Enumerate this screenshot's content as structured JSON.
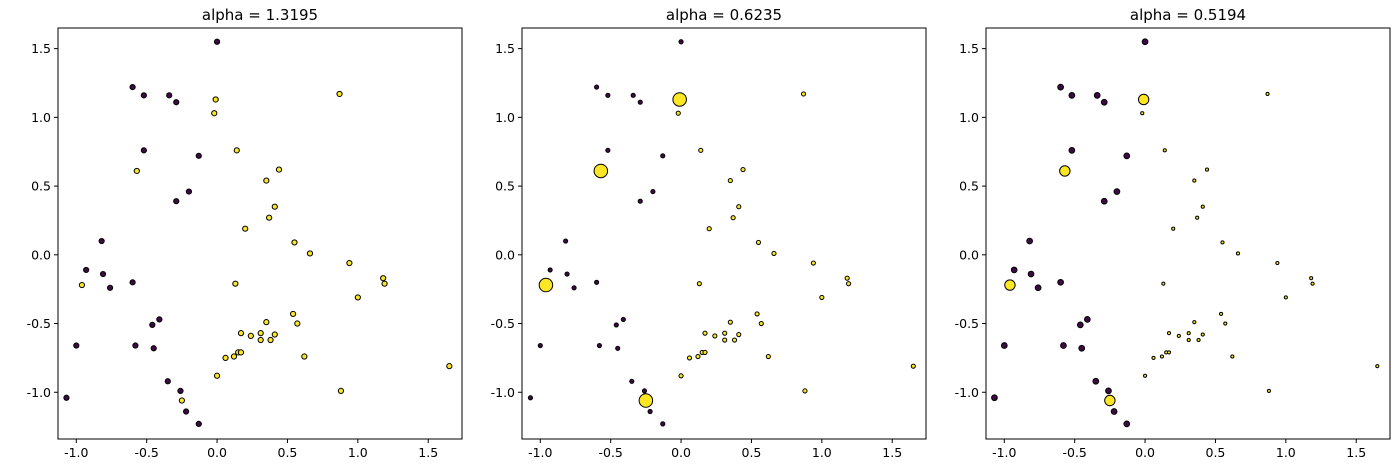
{
  "chart_data": [
    {
      "type": "scatter",
      "title": "alpha = 1.3195",
      "xlim": [
        -1.13,
        1.74
      ],
      "ylim": [
        -1.34,
        1.65
      ],
      "xticks": [
        "-1.0",
        "-0.5",
        "0.0",
        "0.5",
        "1.0",
        "1.5"
      ],
      "yticks": [
        "-1.0",
        "-0.5",
        "0.0",
        "0.5",
        "1.0",
        "1.5"
      ],
      "grid": false,
      "series": [
        {
          "color": "#3d0a43",
          "points": [
            [
              0.0,
              1.55
            ],
            [
              -0.6,
              1.22
            ],
            [
              -0.52,
              1.16
            ],
            [
              -0.34,
              1.16
            ],
            [
              -0.29,
              1.11
            ],
            [
              -0.52,
              0.76
            ],
            [
              -0.13,
              0.72
            ],
            [
              -0.2,
              0.46
            ],
            [
              -0.29,
              0.39
            ],
            [
              -0.82,
              0.1
            ],
            [
              -0.93,
              -0.11
            ],
            [
              -0.81,
              -0.14
            ],
            [
              -0.76,
              -0.24
            ],
            [
              -0.6,
              -0.2
            ],
            [
              -0.41,
              -0.47
            ],
            [
              -0.46,
              -0.51
            ],
            [
              -1.0,
              -0.66
            ],
            [
              -0.58,
              -0.66
            ],
            [
              -0.45,
              -0.68
            ],
            [
              -0.35,
              -0.92
            ],
            [
              -0.26,
              -0.99
            ],
            [
              -0.22,
              -1.14
            ],
            [
              -0.13,
              -1.23
            ],
            [
              -1.07,
              -1.04
            ]
          ],
          "sizes": [
            1,
            1,
            1,
            1,
            1,
            1,
            1,
            1,
            1,
            1,
            1,
            1,
            1,
            1,
            1,
            1,
            1,
            1,
            1,
            1,
            1,
            1,
            1,
            1
          ]
        },
        {
          "color": "#fde725",
          "points": [
            [
              -0.01,
              1.13
            ],
            [
              -0.02,
              1.03
            ],
            [
              0.87,
              1.17
            ],
            [
              0.14,
              0.76
            ],
            [
              -0.57,
              0.61
            ],
            [
              0.44,
              0.62
            ],
            [
              0.35,
              0.54
            ],
            [
              0.41,
              0.35
            ],
            [
              0.37,
              0.27
            ],
            [
              0.2,
              0.19
            ],
            [
              0.55,
              0.09
            ],
            [
              0.66,
              0.01
            ],
            [
              0.94,
              -0.06
            ],
            [
              1.18,
              -0.17
            ],
            [
              1.19,
              -0.21
            ],
            [
              1.0,
              -0.31
            ],
            [
              -0.96,
              -0.22
            ],
            [
              0.13,
              -0.21
            ],
            [
              0.54,
              -0.43
            ],
            [
              0.57,
              -0.5
            ],
            [
              0.35,
              -0.49
            ],
            [
              0.17,
              -0.57
            ],
            [
              0.24,
              -0.59
            ],
            [
              0.31,
              -0.57
            ],
            [
              0.31,
              -0.62
            ],
            [
              0.38,
              -0.62
            ],
            [
              0.41,
              -0.58
            ],
            [
              0.15,
              -0.71
            ],
            [
              0.17,
              -0.71
            ],
            [
              0.12,
              -0.74
            ],
            [
              0.06,
              -0.75
            ],
            [
              0.62,
              -0.74
            ],
            [
              0.0,
              -0.88
            ],
            [
              -0.25,
              -1.06
            ],
            [
              0.88,
              -0.99
            ],
            [
              1.65,
              -0.81
            ]
          ],
          "sizes": [
            1,
            1,
            1,
            1,
            1,
            1,
            1,
            1,
            1,
            1,
            1,
            1,
            1,
            1,
            1,
            1,
            1,
            1,
            1,
            1,
            1,
            1,
            1,
            1,
            1,
            1,
            1,
            1,
            1,
            1,
            1,
            1,
            1,
            1,
            1,
            1
          ]
        }
      ]
    },
    {
      "type": "scatter",
      "title": "alpha = 0.6235",
      "xlim": [
        -1.13,
        1.74
      ],
      "ylim": [
        -1.34,
        1.65
      ],
      "xticks": [
        "-1.0",
        "-0.5",
        "0.0",
        "0.5",
        "1.0",
        "1.5"
      ],
      "yticks": [
        "-1.0",
        "-0.5",
        "0.0",
        "0.5",
        "1.0",
        "1.5"
      ],
      "grid": false,
      "series": [
        {
          "color": "#3d0a43",
          "points": [
            [
              0.0,
              1.55
            ],
            [
              -0.6,
              1.22
            ],
            [
              -0.52,
              1.16
            ],
            [
              -0.34,
              1.16
            ],
            [
              -0.29,
              1.11
            ],
            [
              -0.52,
              0.76
            ],
            [
              -0.13,
              0.72
            ],
            [
              -0.2,
              0.46
            ],
            [
              -0.29,
              0.39
            ],
            [
              -0.82,
              0.1
            ],
            [
              -0.93,
              -0.11
            ],
            [
              -0.81,
              -0.14
            ],
            [
              -0.76,
              -0.24
            ],
            [
              -0.6,
              -0.2
            ],
            [
              -0.41,
              -0.47
            ],
            [
              -0.46,
              -0.51
            ],
            [
              -1.0,
              -0.66
            ],
            [
              -0.58,
              -0.66
            ],
            [
              -0.45,
              -0.68
            ],
            [
              -0.35,
              -0.92
            ],
            [
              -0.26,
              -0.99
            ],
            [
              -0.22,
              -1.14
            ],
            [
              -0.13,
              -1.23
            ],
            [
              -1.07,
              -1.04
            ]
          ],
          "sizes": [
            0.8,
            0.8,
            0.8,
            0.8,
            0.8,
            0.8,
            0.8,
            0.8,
            0.8,
            0.8,
            0.8,
            0.8,
            0.8,
            0.8,
            0.8,
            0.8,
            0.8,
            0.8,
            0.8,
            0.8,
            0.8,
            0.8,
            0.8,
            0.8
          ]
        },
        {
          "color": "#fde725",
          "points": [
            [
              -0.01,
              1.13
            ],
            [
              -0.02,
              1.03
            ],
            [
              0.87,
              1.17
            ],
            [
              0.14,
              0.76
            ],
            [
              -0.57,
              0.61
            ],
            [
              0.44,
              0.62
            ],
            [
              0.35,
              0.54
            ],
            [
              0.41,
              0.35
            ],
            [
              0.37,
              0.27
            ],
            [
              0.2,
              0.19
            ],
            [
              0.55,
              0.09
            ],
            [
              0.66,
              0.01
            ],
            [
              0.94,
              -0.06
            ],
            [
              1.18,
              -0.17
            ],
            [
              1.19,
              -0.21
            ],
            [
              1.0,
              -0.31
            ],
            [
              -0.96,
              -0.22
            ],
            [
              0.13,
              -0.21
            ],
            [
              0.54,
              -0.43
            ],
            [
              0.57,
              -0.5
            ],
            [
              0.35,
              -0.49
            ],
            [
              0.17,
              -0.57
            ],
            [
              0.24,
              -0.59
            ],
            [
              0.31,
              -0.57
            ],
            [
              0.31,
              -0.62
            ],
            [
              0.38,
              -0.62
            ],
            [
              0.41,
              -0.58
            ],
            [
              0.15,
              -0.71
            ],
            [
              0.17,
              -0.71
            ],
            [
              0.12,
              -0.74
            ],
            [
              0.06,
              -0.75
            ],
            [
              0.62,
              -0.74
            ],
            [
              0.0,
              -0.88
            ],
            [
              -0.25,
              -1.06
            ],
            [
              0.88,
              -0.99
            ],
            [
              1.65,
              -0.81
            ]
          ],
          "sizes": [
            2.6,
            0.8,
            0.8,
            0.8,
            2.6,
            0.8,
            0.8,
            0.8,
            0.8,
            0.8,
            0.8,
            0.8,
            0.8,
            0.8,
            0.8,
            0.8,
            2.6,
            0.8,
            0.8,
            0.8,
            0.8,
            0.8,
            0.8,
            0.8,
            0.8,
            0.8,
            0.8,
            0.8,
            0.8,
            0.8,
            0.8,
            0.8,
            0.8,
            2.6,
            0.8,
            0.8
          ]
        }
      ]
    },
    {
      "type": "scatter",
      "title": "alpha = 0.5194",
      "xlim": [
        -1.13,
        1.74
      ],
      "ylim": [
        -1.34,
        1.65
      ],
      "xticks": [
        "-1.0",
        "-0.5",
        "0.0",
        "0.5",
        "1.0",
        "1.5"
      ],
      "yticks": [
        "-1.0",
        "-0.5",
        "0.0",
        "0.5",
        "1.0",
        "1.5"
      ],
      "grid": false,
      "series": [
        {
          "color": "#3d0a43",
          "points": [
            [
              0.0,
              1.55
            ],
            [
              -0.6,
              1.22
            ],
            [
              -0.52,
              1.16
            ],
            [
              -0.34,
              1.16
            ],
            [
              -0.29,
              1.11
            ],
            [
              -0.52,
              0.76
            ],
            [
              -0.13,
              0.72
            ],
            [
              -0.2,
              0.46
            ],
            [
              -0.29,
              0.39
            ],
            [
              -0.82,
              0.1
            ],
            [
              -0.93,
              -0.11
            ],
            [
              -0.81,
              -0.14
            ],
            [
              -0.76,
              -0.24
            ],
            [
              -0.6,
              -0.2
            ],
            [
              -0.41,
              -0.47
            ],
            [
              -0.46,
              -0.51
            ],
            [
              -1.0,
              -0.66
            ],
            [
              -0.58,
              -0.66
            ],
            [
              -0.45,
              -0.68
            ],
            [
              -0.35,
              -0.92
            ],
            [
              -0.26,
              -0.99
            ],
            [
              -0.22,
              -1.14
            ],
            [
              -0.13,
              -1.23
            ],
            [
              -1.07,
              -1.04
            ]
          ],
          "sizes": [
            1.1,
            1.1,
            1.1,
            1.1,
            1.1,
            1.1,
            1.1,
            1.1,
            1.1,
            1.1,
            1.1,
            1.1,
            1.1,
            1.1,
            1.1,
            1.1,
            1.1,
            1.1,
            1.1,
            1.1,
            1.1,
            1.1,
            1.1,
            1.1
          ]
        },
        {
          "color": "#fde725",
          "points": [
            [
              -0.01,
              1.13
            ],
            [
              -0.02,
              1.03
            ],
            [
              0.87,
              1.17
            ],
            [
              0.14,
              0.76
            ],
            [
              -0.57,
              0.61
            ],
            [
              0.44,
              0.62
            ],
            [
              0.35,
              0.54
            ],
            [
              0.41,
              0.35
            ],
            [
              0.37,
              0.27
            ],
            [
              0.2,
              0.19
            ],
            [
              0.55,
              0.09
            ],
            [
              0.66,
              0.01
            ],
            [
              0.94,
              -0.06
            ],
            [
              1.18,
              -0.17
            ],
            [
              1.19,
              -0.21
            ],
            [
              1.0,
              -0.31
            ],
            [
              -0.96,
              -0.22
            ],
            [
              0.13,
              -0.21
            ],
            [
              0.54,
              -0.43
            ],
            [
              0.57,
              -0.5
            ],
            [
              0.35,
              -0.49
            ],
            [
              0.17,
              -0.57
            ],
            [
              0.24,
              -0.59
            ],
            [
              0.31,
              -0.57
            ],
            [
              0.31,
              -0.62
            ],
            [
              0.38,
              -0.62
            ],
            [
              0.41,
              -0.58
            ],
            [
              0.15,
              -0.71
            ],
            [
              0.17,
              -0.71
            ],
            [
              0.12,
              -0.74
            ],
            [
              0.06,
              -0.75
            ],
            [
              0.62,
              -0.74
            ],
            [
              0.0,
              -0.88
            ],
            [
              -0.25,
              -1.06
            ],
            [
              0.88,
              -0.99
            ],
            [
              1.65,
              -0.81
            ]
          ],
          "sizes": [
            2.0,
            0.6,
            0.6,
            0.6,
            2.0,
            0.6,
            0.6,
            0.6,
            0.6,
            0.6,
            0.6,
            0.6,
            0.6,
            0.6,
            0.6,
            0.6,
            2.0,
            0.6,
            0.6,
            0.6,
            0.6,
            0.6,
            0.6,
            0.6,
            0.6,
            0.6,
            0.6,
            0.6,
            0.6,
            0.6,
            0.6,
            0.6,
            0.6,
            2.0,
            0.6,
            0.6
          ]
        }
      ]
    }
  ]
}
